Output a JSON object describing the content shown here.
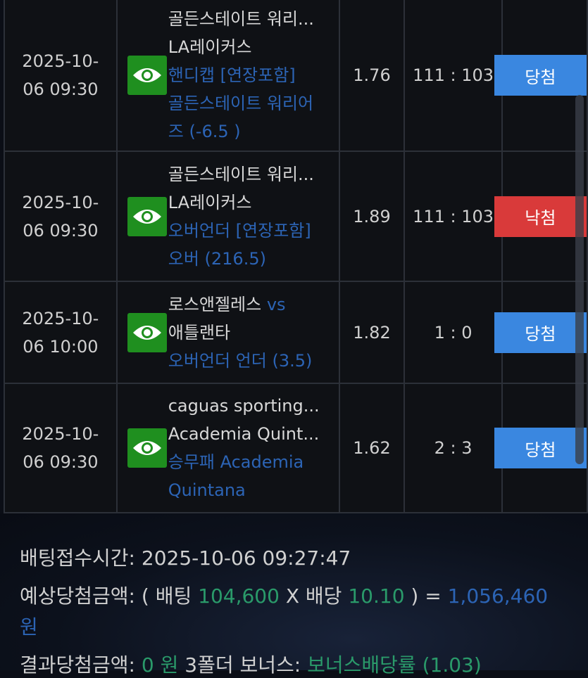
{
  "rows": [
    {
      "date": "2025-10-06 09:30",
      "team1": "골든스테이트 워리...",
      "team1_suffix": "",
      "team2": "LA레이커스",
      "market": "핸디캡 [연장포함]",
      "pick": "골든스테이트 워리어즈 (-6.5 )",
      "odds": "1.76",
      "score": "111 : 103",
      "result": "당첨",
      "status": "win"
    },
    {
      "date": "2025-10-06 09:30",
      "team1": "골든스테이트 워리...",
      "team1_suffix": "",
      "team2": "LA레이커스",
      "market": "오버언더 [연장포함]",
      "pick": "오버 (216.5)",
      "odds": "1.89",
      "score": "111 : 103",
      "result": "낙첨",
      "status": "lose"
    },
    {
      "date": "2025-10-06 10:00",
      "team1": "로스앤젤레스",
      "team1_suffix": " vs",
      "team2": "애틀랜타",
      "market": "오버언더 언더 (3.5)",
      "pick": "",
      "odds": "1.82",
      "score": "1 : 0",
      "result": "당첨",
      "status": "win"
    },
    {
      "date": "2025-10-06 09:30",
      "team1": "caguas sporting...",
      "team1_suffix": "",
      "team2": "Academia Quint...",
      "market": "승무패 Academia",
      "pick": "Quintana",
      "odds": "1.62",
      "score": "2 : 3",
      "result": "당첨",
      "status": "win"
    }
  ],
  "info": {
    "time_label": "배팅접수시간: ",
    "time": "2025-10-06 09:27:47",
    "expected_label": "예상당첨금액: ( 배팅 ",
    "bet": "104,600",
    "x_label": " X 배당 ",
    "rate": "10.10",
    "eq": " ) = ",
    "expected": "1,056,460",
    "won": "원",
    "result_label": "결과당첨금액: ",
    "result": "0 원",
    "bonus_label": "   3폴더 보너스: ",
    "bonus": "보너스배당률 (1.03)"
  },
  "colors": {
    "win": "#3a87e0",
    "lose": "#d93a3a",
    "eye": "#1f8f1f"
  }
}
